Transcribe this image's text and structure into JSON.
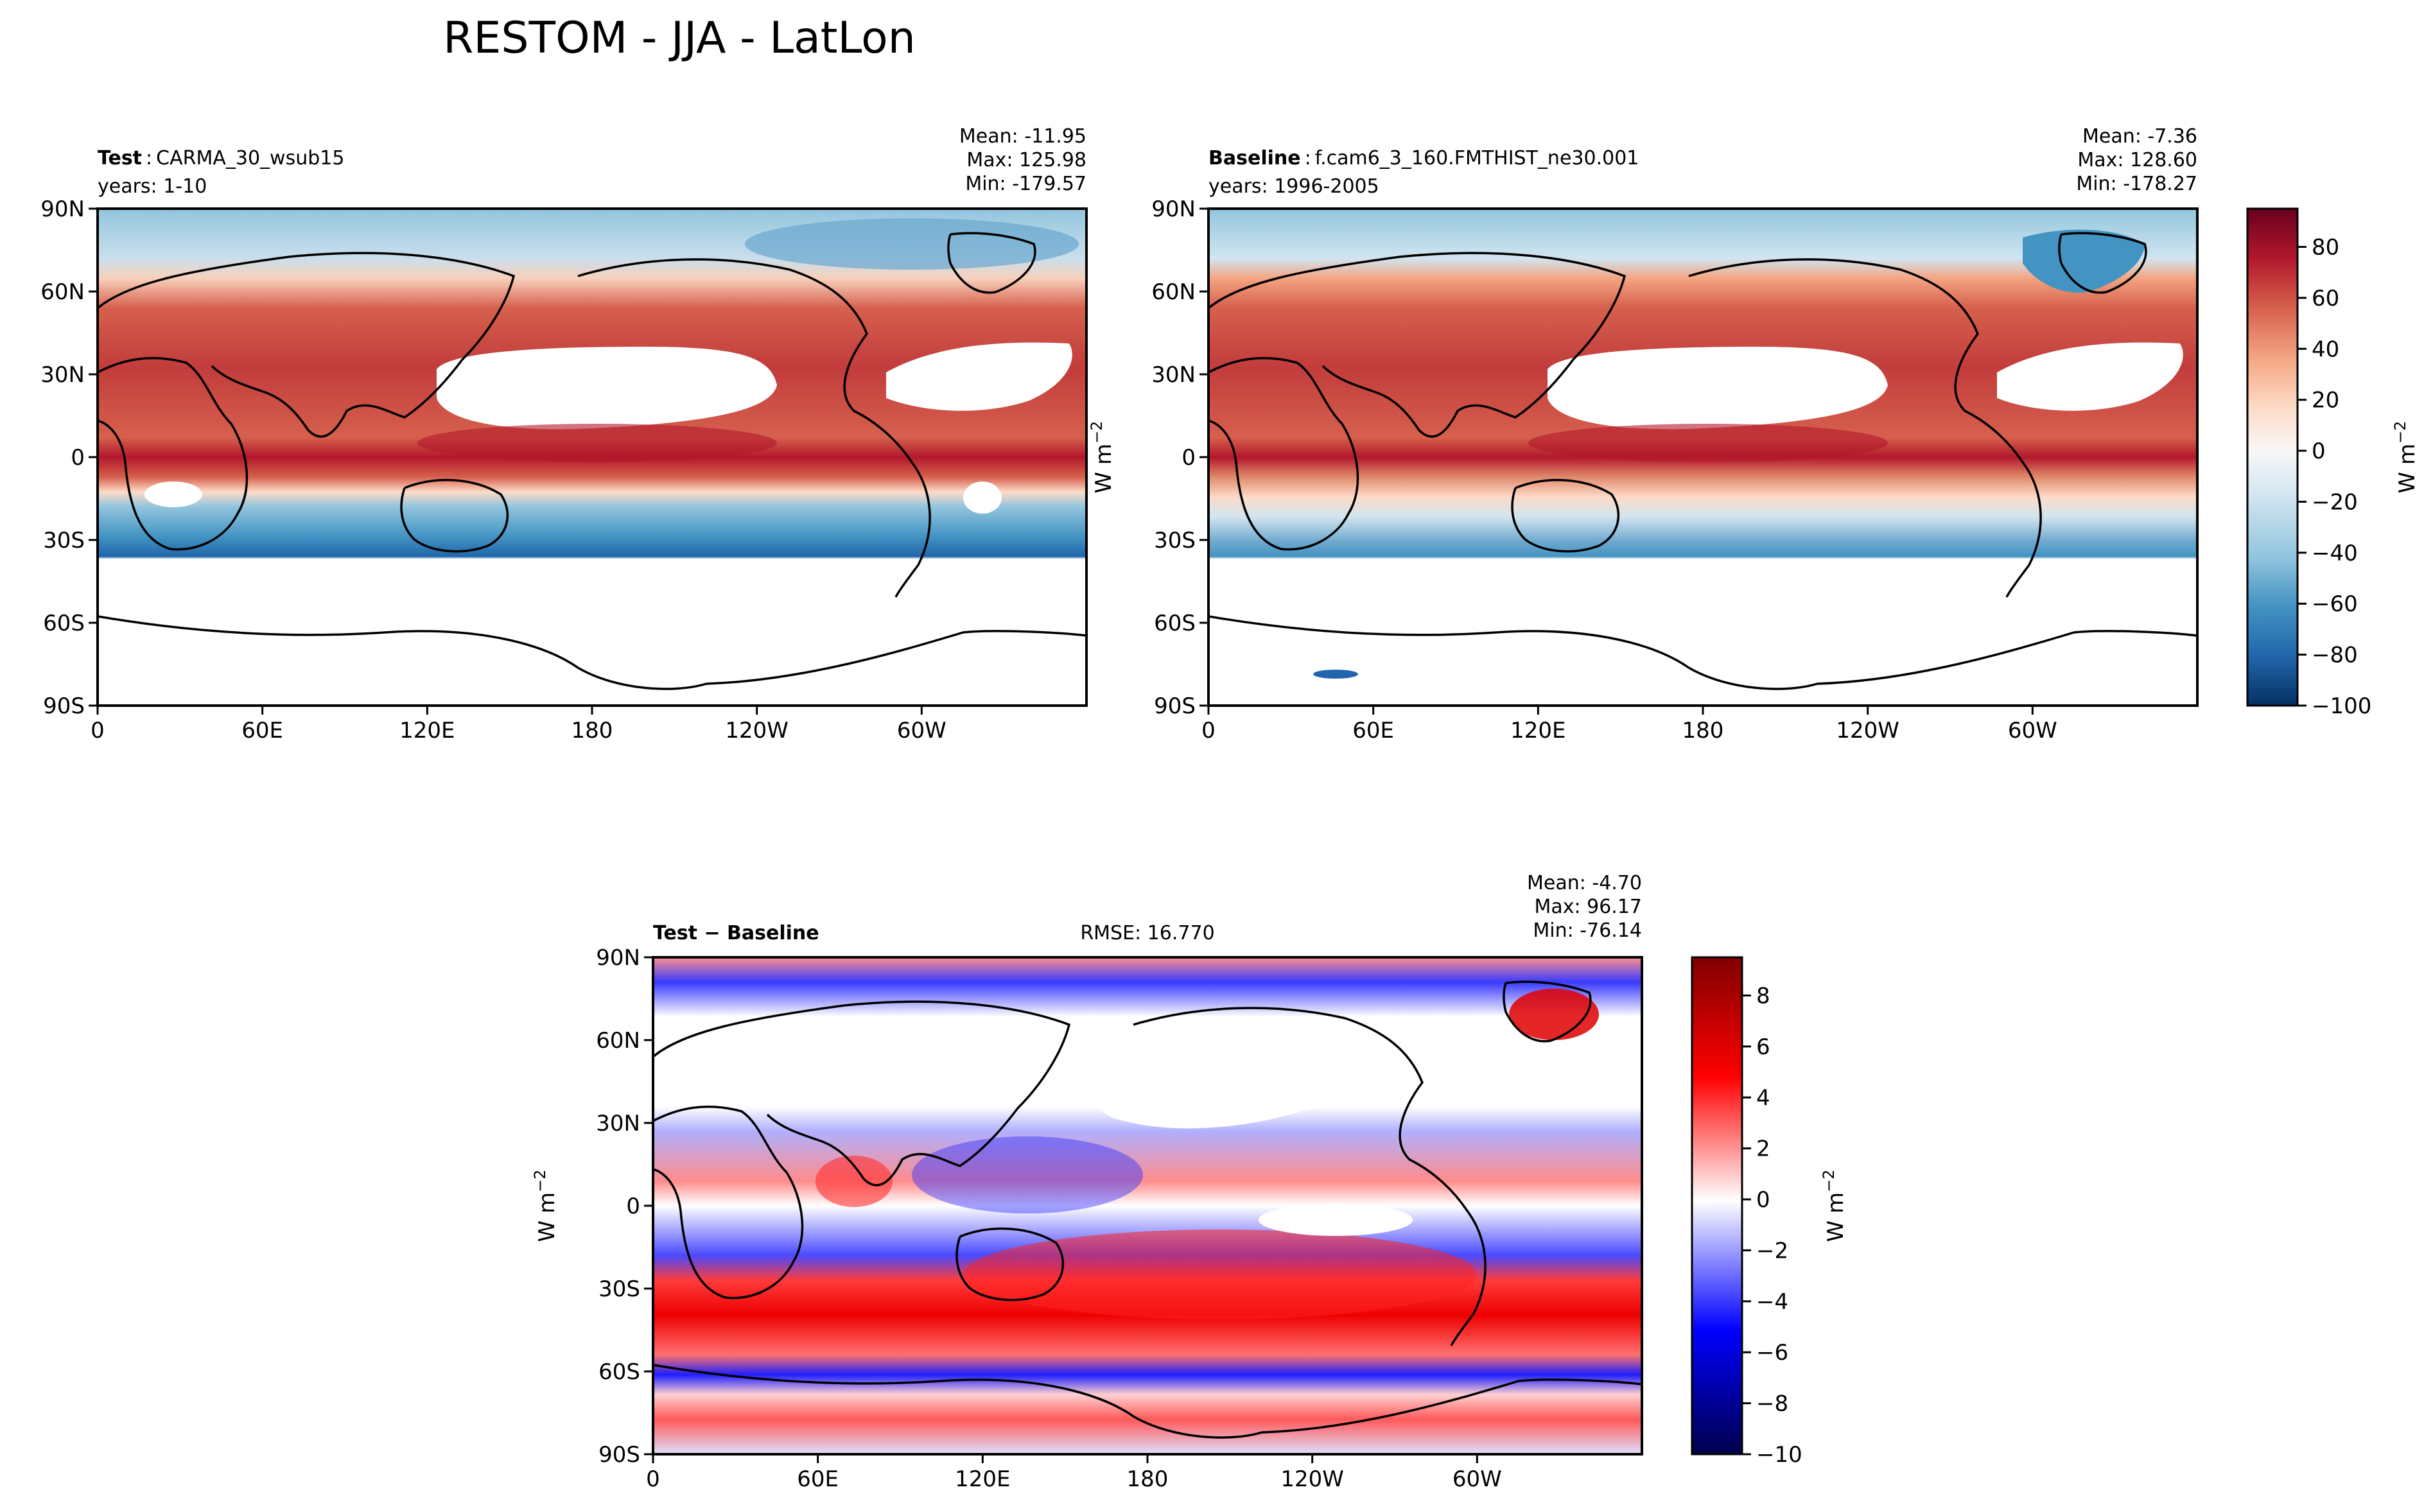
{
  "chart_data": {
    "type": "heatmap",
    "title": "RESTOM - JJA - LatLon",
    "panels": [
      {
        "id": "test",
        "name_bold": "Test",
        "name_sep": ":",
        "name_text": "CARMA_30_wsub15",
        "years": "years: 1-10",
        "stats": [
          "Mean: -11.95",
          "Max: 125.98",
          "Min: -179.57"
        ],
        "rmse": "",
        "stats_values": {
          "mean": -11.95,
          "max": 125.98,
          "min": -179.57
        },
        "xticks": [
          "0",
          "60E",
          "120E",
          "180",
          "120W",
          "60W"
        ],
        "yticks": [
          "90N",
          "60N",
          "30N",
          "0",
          "30S",
          "60S",
          "90S"
        ],
        "xlim": [
          0,
          360
        ],
        "ylim": [
          -90,
          90
        ],
        "cmap": "RdBu_r",
        "colorbar": {
          "label": "W m",
          "label_exp": "−2",
          "ticks": [
            "80",
            "60",
            "40",
            "20",
            "0",
            "−20",
            "−40",
            "−60",
            "−80",
            "−100"
          ],
          "tick_values": [
            80,
            60,
            40,
            20,
            0,
            -20,
            -40,
            -60,
            -80,
            -100
          ],
          "range": [
            -100,
            95
          ]
        }
      },
      {
        "id": "baseline",
        "name_bold": "Baseline",
        "name_sep": ":",
        "name_text": "f.cam6_3_160.FMTHIST_ne30.001",
        "years": "years: 1996-2005",
        "stats": [
          "Mean: -7.36",
          "Max: 128.60",
          "Min: -178.27"
        ],
        "rmse": "",
        "stats_values": {
          "mean": -7.36,
          "max": 128.6,
          "min": -178.27
        },
        "xticks": [
          "0",
          "60E",
          "120E",
          "180",
          "120W",
          "60W"
        ],
        "yticks": [
          "90N",
          "60N",
          "30N",
          "0",
          "30S",
          "60S",
          "90S"
        ],
        "xlim": [
          0,
          360
        ],
        "ylim": [
          -90,
          90
        ],
        "cmap": "RdBu_r"
      },
      {
        "id": "diff",
        "name_bold": "Test − Baseline",
        "name_sep": "",
        "name_text": "",
        "years": "",
        "stats": [
          "Mean: -4.70",
          "Max: 96.17",
          "Min: -76.14"
        ],
        "rmse": "RMSE: 16.770",
        "stats_values": {
          "mean": -4.7,
          "max": 96.17,
          "min": -76.14,
          "rmse": 16.77
        },
        "xticks": [
          "0",
          "60E",
          "120E",
          "180",
          "120W",
          "60W"
        ],
        "yticks": [
          "90N",
          "60N",
          "30N",
          "0",
          "30S",
          "60S",
          "90S"
        ],
        "xlim": [
          0,
          360
        ],
        "ylim": [
          -90,
          90
        ],
        "cmap": "seismic",
        "colorbar": {
          "label": "W m",
          "label_exp": "−2",
          "ticks": [
            "8",
            "6",
            "4",
            "2",
            "0",
            "−2",
            "−4",
            "−6",
            "−8",
            "−10"
          ],
          "tick_values": [
            8,
            6,
            4,
            2,
            0,
            -2,
            -4,
            -6,
            -8,
            -10
          ],
          "range": [
            -10,
            9.5
          ]
        }
      }
    ],
    "shared_ylabel": "W m",
    "shared_ylabel_exp": "−2"
  }
}
